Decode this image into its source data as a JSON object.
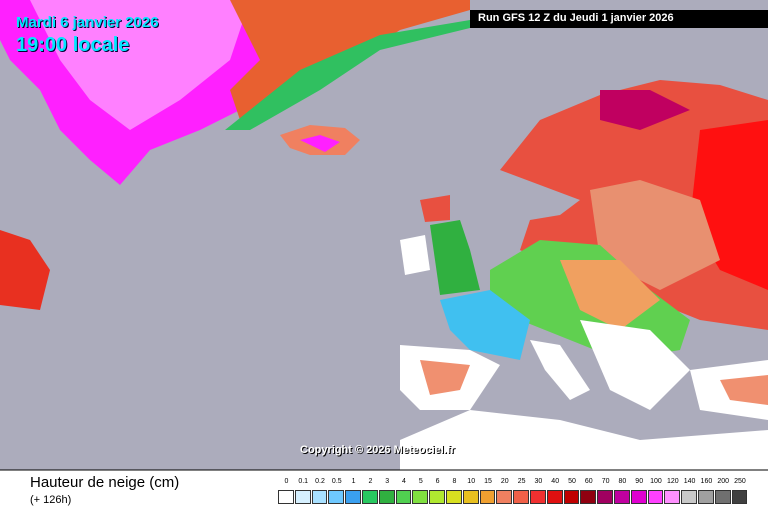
{
  "header": {
    "date": "Mardi 6 janvier 2026",
    "time": "19:00 locale",
    "run": "Run GFS 12 Z du Jeudi 1 janvier 2026"
  },
  "copyright": "Copyright © 2026 Meteociel.fr",
  "footer": {
    "title": "Hauteur de neige (cm)",
    "lead": "(+ 126h)"
  },
  "legend": {
    "items": [
      {
        "label": "0",
        "color": "#ffffff"
      },
      {
        "label": "0.1",
        "color": "#d6f0ff"
      },
      {
        "label": "0.2",
        "color": "#a8e0ff"
      },
      {
        "label": "0.5",
        "color": "#6ec8ff"
      },
      {
        "label": "1",
        "color": "#3aa0f0"
      },
      {
        "label": "2",
        "color": "#28c860"
      },
      {
        "label": "3",
        "color": "#30b040"
      },
      {
        "label": "4",
        "color": "#50d050"
      },
      {
        "label": "5",
        "color": "#80e040"
      },
      {
        "label": "6",
        "color": "#b0e830"
      },
      {
        "label": "8",
        "color": "#d8e020"
      },
      {
        "label": "10",
        "color": "#e8c020"
      },
      {
        "label": "15",
        "color": "#f0a030"
      },
      {
        "label": "20",
        "color": "#f08060"
      },
      {
        "label": "25",
        "color": "#f06048"
      },
      {
        "label": "30",
        "color": "#f03030"
      },
      {
        "label": "40",
        "color": "#e01010"
      },
      {
        "label": "50",
        "color": "#c00000"
      },
      {
        "label": "60",
        "color": "#900010"
      },
      {
        "label": "70",
        "color": "#a00060"
      },
      {
        "label": "80",
        "color": "#c000a0"
      },
      {
        "label": "90",
        "color": "#e000d0"
      },
      {
        "label": "100",
        "color": "#ff40ff"
      },
      {
        "label": "120",
        "color": "#ff90ff"
      },
      {
        "label": "140",
        "color": "#c8c8c8"
      },
      {
        "label": "160",
        "color": "#a0a0a0"
      },
      {
        "label": "200",
        "color": "#707070"
      },
      {
        "label": "250",
        "color": "#404040"
      }
    ]
  }
}
